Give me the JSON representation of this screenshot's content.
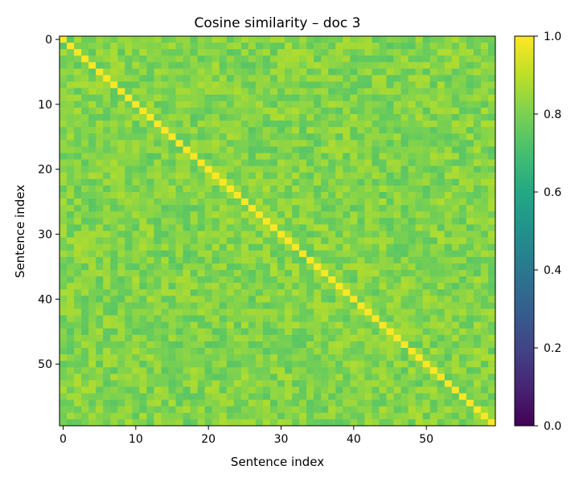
{
  "chart_data": {
    "type": "heatmap",
    "title": "Cosine similarity – doc 3",
    "xlabel": "Sentence index",
    "ylabel": "Sentence index",
    "n_rows": 60,
    "n_cols": 60,
    "diagonal_value": 1.0,
    "off_diagonal_range": [
      0.74,
      0.88
    ],
    "x_ticks": [
      0,
      10,
      20,
      30,
      40,
      50
    ],
    "y_ticks": [
      0,
      10,
      20,
      30,
      40,
      50
    ],
    "colorbar": {
      "colormap": "viridis",
      "range": [
        0.0,
        1.0
      ],
      "ticks": [
        "0.0",
        "0.2",
        "0.4",
        "0.6",
        "0.8",
        "1.0"
      ]
    }
  }
}
